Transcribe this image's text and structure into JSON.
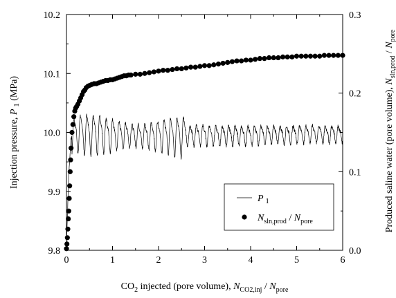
{
  "chart_data": {
    "type": "line",
    "title": "",
    "x_axis": {
      "range": [
        0,
        6
      ],
      "ticks": [
        "0",
        "1",
        "2",
        "3",
        "4",
        "5",
        "6"
      ],
      "label_parts": [
        "CO",
        "2",
        " injected (pore volume), ",
        "N",
        "CO2,inj",
        " / ",
        "N",
        "pore"
      ]
    },
    "y_axis_left": {
      "range": [
        9.8,
        10.2
      ],
      "ticks": [
        "9.8",
        "9.9",
        "10.0",
        "10.1",
        "10.2"
      ],
      "label_parts": [
        "Injection pressure, ",
        "P",
        " 1",
        " (MPa)"
      ]
    },
    "y_axis_right": {
      "range": [
        0.0,
        0.3
      ],
      "ticks": [
        "0.0",
        "0.1",
        "0.2",
        "0.3"
      ],
      "label_parts": [
        "Produced saline water (pore volume), ",
        "N",
        "sln,prod",
        " / ",
        "N",
        "pore"
      ]
    },
    "legend": {
      "position": "bottom-right",
      "entries": [
        {
          "parts": [
            "P",
            " 1"
          ],
          "marker": "line"
        },
        {
          "parts": [
            "N",
            "sln,prod",
            " / ",
            "N",
            "pore"
          ],
          "marker": "filled-circle"
        }
      ]
    },
    "grid": false,
    "colors": {
      "line": "#000000",
      "marker": "#000000"
    },
    "series": [
      {
        "axis": "left",
        "kind": "line",
        "oscillation": {
          "amplitude": 0.03,
          "period": 0.14
        },
        "x": [
          0.0,
          0.05,
          0.1,
          0.15,
          0.2,
          0.3,
          0.4,
          0.6,
          0.8,
          1.0,
          1.2,
          1.4,
          1.6,
          1.8,
          2.0,
          2.2,
          2.4,
          2.6,
          2.8,
          3.0,
          3.2,
          3.4,
          3.6,
          3.8,
          4.0,
          4.2,
          4.4,
          4.6,
          4.8,
          5.0,
          5.2,
          5.4,
          5.6,
          5.8,
          6.0
        ],
        "y": [
          9.81,
          9.93,
          9.99,
          9.995,
          10.0,
          10.0,
          10.0,
          10.0,
          9.998,
          9.998,
          9.997,
          9.997,
          9.996,
          9.996,
          9.996,
          9.996,
          9.996,
          9.996,
          9.996,
          9.997,
          9.996,
          9.996,
          9.996,
          9.996,
          9.996,
          9.997,
          9.997,
          9.997,
          9.997,
          9.998,
          9.998,
          9.999,
          9.998,
          9.998,
          9.998
        ]
      },
      {
        "axis": "right",
        "kind": "scatter",
        "x": [
          0.0,
          0.01,
          0.02,
          0.03,
          0.04,
          0.05,
          0.06,
          0.07,
          0.08,
          0.09,
          0.1,
          0.12,
          0.14,
          0.16,
          0.18,
          0.2,
          0.22,
          0.25,
          0.28,
          0.31,
          0.34,
          0.37,
          0.4,
          0.43,
          0.47,
          0.51,
          0.55,
          0.6,
          0.65,
          0.7,
          0.75,
          0.8,
          0.85,
          0.9,
          0.95,
          1.0,
          1.05,
          1.1,
          1.15,
          1.2,
          1.25,
          1.3,
          1.35,
          1.4,
          1.5,
          1.6,
          1.7,
          1.8,
          1.9,
          2.0,
          2.1,
          2.2,
          2.3,
          2.4,
          2.5,
          2.6,
          2.7,
          2.8,
          2.9,
          3.0,
          3.1,
          3.2,
          3.3,
          3.4,
          3.5,
          3.6,
          3.7,
          3.8,
          3.9,
          4.0,
          4.1,
          4.2,
          4.3,
          4.4,
          4.5,
          4.6,
          4.7,
          4.8,
          4.9,
          5.0,
          5.1,
          5.2,
          5.3,
          5.4,
          5.5,
          5.6,
          5.7,
          5.8,
          5.9,
          6.0
        ],
        "y": [
          0.002,
          0.008,
          0.016,
          0.027,
          0.04,
          0.05,
          0.066,
          0.082,
          0.1,
          0.115,
          0.13,
          0.15,
          0.16,
          0.17,
          0.177,
          0.181,
          0.183,
          0.186,
          0.19,
          0.194,
          0.198,
          0.202,
          0.204,
          0.207,
          0.209,
          0.21,
          0.211,
          0.212,
          0.212,
          0.213,
          0.214,
          0.215,
          0.216,
          0.216,
          0.217,
          0.217,
          0.218,
          0.219,
          0.22,
          0.221,
          0.222,
          0.222,
          0.223,
          0.223,
          0.224,
          0.224,
          0.225,
          0.226,
          0.227,
          0.228,
          0.229,
          0.229,
          0.23,
          0.231,
          0.231,
          0.232,
          0.233,
          0.233,
          0.234,
          0.235,
          0.235,
          0.236,
          0.237,
          0.238,
          0.239,
          0.24,
          0.241,
          0.241,
          0.242,
          0.242,
          0.243,
          0.244,
          0.244,
          0.245,
          0.245,
          0.245,
          0.246,
          0.246,
          0.246,
          0.247,
          0.247,
          0.247,
          0.247,
          0.247,
          0.247,
          0.248,
          0.248,
          0.248,
          0.248,
          0.248
        ]
      }
    ]
  }
}
